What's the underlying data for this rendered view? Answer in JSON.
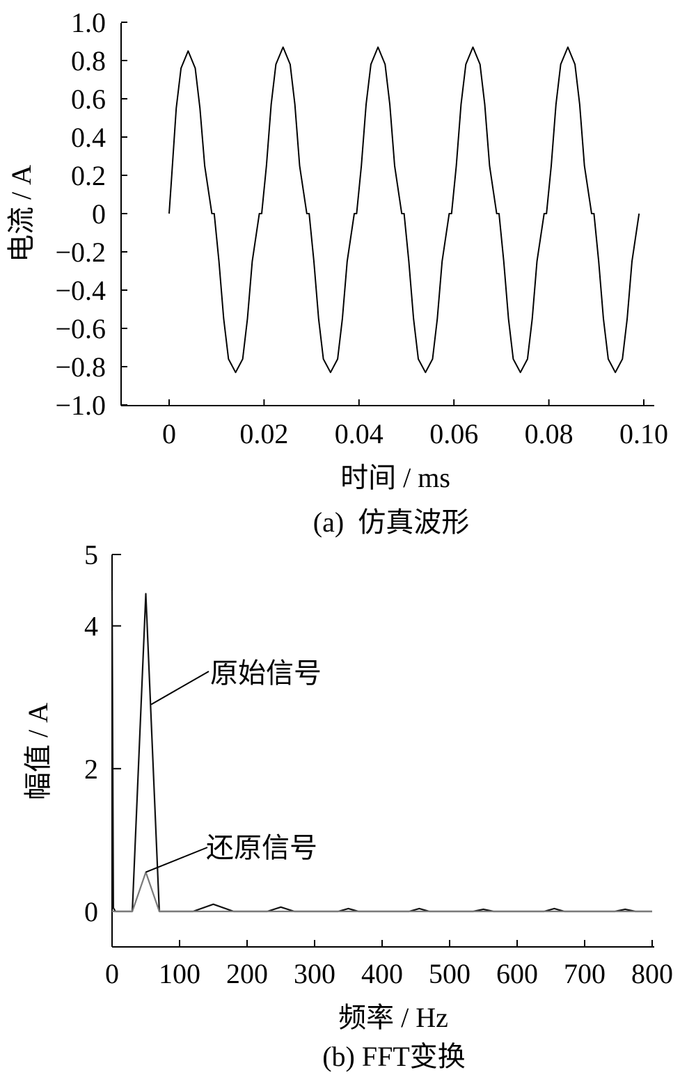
{
  "chart_data": [
    {
      "type": "line",
      "caption": "(a)  仿真波形",
      "xlabel": "时间 / ms",
      "ylabel": "电流 / A",
      "xlim": [
        -0.01,
        0.1
      ],
      "ylim": [
        -1.0,
        1.0
      ],
      "xticks": [
        0,
        0.02,
        0.04,
        0.06,
        0.08,
        0.1
      ],
      "xtick_labels": [
        "0",
        "0.02",
        "0.04",
        "0.06",
        "0.08",
        "0.10"
      ],
      "yticks": [
        1.0,
        0.8,
        0.6,
        0.4,
        0.2,
        0,
        -0.2,
        -0.4,
        -0.6,
        -0.8,
        -1.0
      ],
      "ytick_labels": [
        "1.0",
        "0.8",
        "0.6",
        "0.4",
        "0.2",
        "0",
        "−0.2",
        "−0.4",
        "−0.6",
        "−0.8",
        "−1.0"
      ],
      "grid": false,
      "series": [
        {
          "x": [
            0,
            0.0005,
            0.0015,
            0.0025,
            0.004,
            0.0055,
            0.0065,
            0.0075,
            0.009,
            0.0095,
            0.0105,
            0.0115,
            0.0125,
            0.014,
            0.0155,
            0.0165,
            0.0175,
            0.019,
            0.0195,
            0.0205,
            0.0215,
            0.0225,
            0.024,
            0.0255,
            0.0265,
            0.0275,
            0.029,
            0.0295,
            0.0305,
            0.0315,
            0.0325,
            0.034,
            0.0355,
            0.0365,
            0.0375,
            0.039,
            0.0395,
            0.0405,
            0.0415,
            0.0425,
            0.044,
            0.0455,
            0.0465,
            0.0475,
            0.049,
            0.0495,
            0.0505,
            0.0515,
            0.0525,
            0.054,
            0.0555,
            0.0565,
            0.0575,
            0.059,
            0.0595,
            0.0605,
            0.0615,
            0.0625,
            0.064,
            0.0655,
            0.0665,
            0.0675,
            0.069,
            0.0695,
            0.0705,
            0.0715,
            0.0725,
            0.074,
            0.0755,
            0.0765,
            0.0775,
            0.079,
            0.0795,
            0.0805,
            0.0815,
            0.0825,
            0.084,
            0.0855,
            0.0865,
            0.0875,
            0.089,
            0.0895,
            0.0905,
            0.0915,
            0.0925,
            0.094,
            0.0955,
            0.0965,
            0.0975,
            0.099
          ],
          "y": [
            0,
            0.18,
            0.55,
            0.76,
            0.85,
            0.76,
            0.55,
            0.25,
            0,
            0,
            -0.25,
            -0.55,
            -0.76,
            -0.83,
            -0.76,
            -0.55,
            -0.25,
            0,
            0,
            0.25,
            0.57,
            0.78,
            0.87,
            0.78,
            0.57,
            0.25,
            0,
            0,
            -0.25,
            -0.55,
            -0.76,
            -0.83,
            -0.76,
            -0.55,
            -0.25,
            0,
            0,
            0.25,
            0.57,
            0.78,
            0.87,
            0.78,
            0.57,
            0.25,
            0,
            0,
            -0.25,
            -0.55,
            -0.76,
            -0.83,
            -0.76,
            -0.55,
            -0.25,
            0,
            0,
            0.25,
            0.57,
            0.78,
            0.87,
            0.78,
            0.57,
            0.25,
            0,
            0,
            -0.25,
            -0.55,
            -0.76,
            -0.83,
            -0.76,
            -0.55,
            -0.25,
            0,
            0,
            0.25,
            0.57,
            0.78,
            0.87,
            0.78,
            0.57,
            0.25,
            0,
            0,
            -0.25,
            -0.55,
            -0.76,
            -0.83,
            -0.76,
            -0.55,
            -0.25,
            0
          ]
        }
      ]
    },
    {
      "type": "line",
      "caption": "(b) FFT变换",
      "xlabel": "频率 / Hz",
      "ylabel": "幅值 / A",
      "xlim": [
        0,
        800
      ],
      "ylim": [
        -0.5,
        5
      ],
      "xticks": [
        0,
        100,
        200,
        300,
        400,
        500,
        600,
        700,
        800
      ],
      "xtick_labels": [
        "0",
        "100",
        "200",
        "300",
        "400",
        "500",
        "600",
        "700",
        "800"
      ],
      "yticks": [
        0,
        2,
        4,
        5
      ],
      "ytick_labels": [
        "0",
        "2",
        "4",
        "5"
      ],
      "grid": false,
      "series": [
        {
          "name": "原始信号",
          "x": [
            0,
            2,
            5,
            30,
            50,
            70,
            120,
            150,
            180,
            230,
            250,
            270,
            335,
            350,
            365,
            440,
            455,
            470,
            535,
            550,
            565,
            640,
            655,
            670,
            745,
            760,
            775,
            800
          ],
          "y": [
            4.5,
            0.05,
            0,
            0,
            4.45,
            0,
            0,
            0.1,
            0,
            0,
            0.06,
            0,
            0,
            0.04,
            0,
            0,
            0.04,
            0,
            0,
            0.03,
            0,
            0,
            0.04,
            0,
            0,
            0.03,
            0,
            0
          ]
        },
        {
          "name": "还原信号",
          "x": [
            0,
            30,
            50,
            70,
            800
          ],
          "y": [
            0,
            0,
            0.55,
            0,
            0
          ]
        }
      ],
      "annotations": [
        {
          "text": "原始信号",
          "target": [
            58,
            2.9
          ]
        },
        {
          "text": "还原信号",
          "target": [
            50,
            0.55
          ]
        }
      ]
    }
  ]
}
